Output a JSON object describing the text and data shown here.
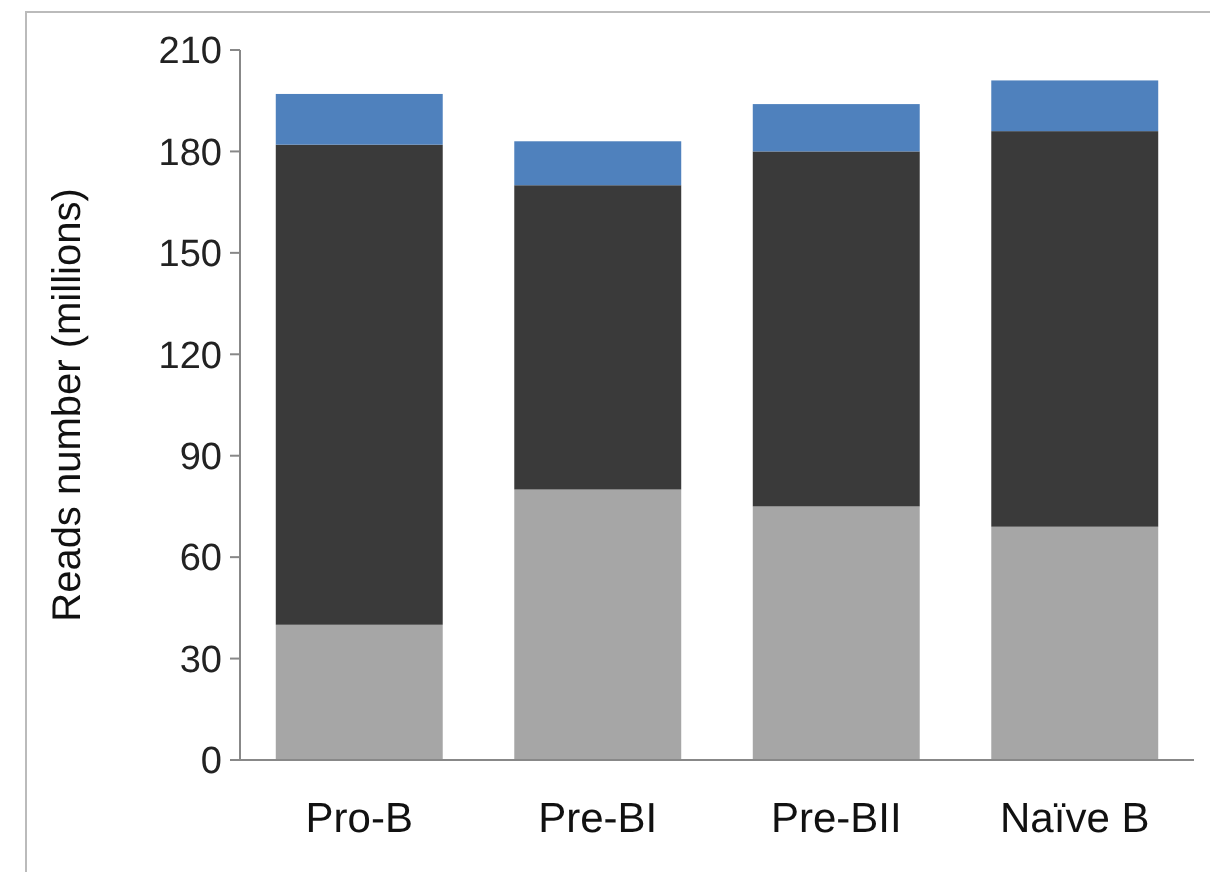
{
  "chart_data": {
    "type": "bar",
    "ylabel": "Reads number (millions)",
    "categories": [
      "Pro-B",
      "Pre-BI",
      "Pre-BII",
      "Naïve B"
    ],
    "stacked": true,
    "series": [
      {
        "color": "#a6a6a6",
        "values": [
          40,
          80,
          75,
          69
        ]
      },
      {
        "color": "#3a3a3a",
        "values": [
          142,
          90,
          105,
          117
        ]
      },
      {
        "color": "#4f81bd",
        "values": [
          15,
          13,
          14,
          15
        ]
      }
    ],
    "ylim": [
      0,
      210
    ],
    "yticks": [
      0,
      30,
      60,
      90,
      120,
      150,
      180,
      210
    ]
  }
}
